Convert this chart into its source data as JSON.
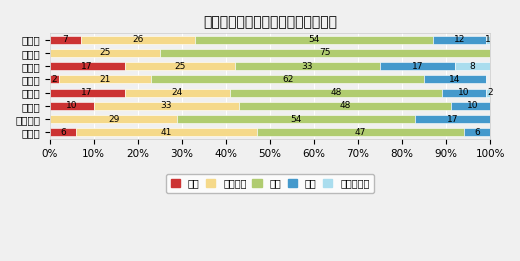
{
  "title": "経営者の供給意欲について（割合）",
  "categories": [
    "全　国",
    "北海道",
    "東　北",
    "関　東",
    "中　部",
    "近　畿",
    "中・四国",
    "九　州"
  ],
  "series": {
    "弱い": [
      7,
      0,
      17,
      2,
      17,
      10,
      0,
      6
    ],
    "やや弱い": [
      26,
      25,
      25,
      21,
      24,
      33,
      29,
      41
    ],
    "普通": [
      54,
      75,
      33,
      62,
      48,
      48,
      54,
      47
    ],
    "強い": [
      12,
      0,
      17,
      14,
      10,
      10,
      17,
      6
    ],
    "かなり強い": [
      1,
      0,
      8,
      0,
      2,
      0,
      0,
      0
    ]
  },
  "colors": {
    "弱い": "#cc3333",
    "やや弱い": "#f5d98a",
    "普通": "#b0cc70",
    "強い": "#4499cc",
    "かなり強い": "#aaddee"
  },
  "legend_order": [
    "弱い",
    "やや弱い",
    "普通",
    "強い",
    "かなり強い"
  ],
  "background_color": "#f0f0f0",
  "title_fontsize": 10,
  "tick_fontsize": 7.5,
  "bar_label_fontsize": 6.5,
  "figsize": [
    5.2,
    2.61
  ],
  "dpi": 100
}
